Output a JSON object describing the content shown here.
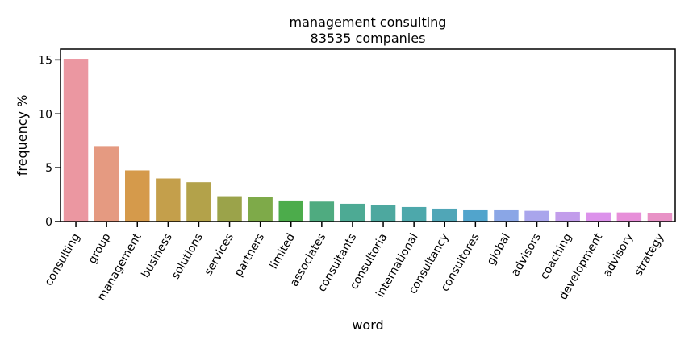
{
  "chart_data": {
    "type": "bar",
    "title": "management consulting",
    "subtitle": "83535 companies",
    "xlabel": "word",
    "ylabel": "frequency %",
    "ylim": [
      0,
      16.0
    ],
    "yticks": [
      0,
      5,
      10,
      15
    ],
    "grid": false,
    "categories": [
      "consulting",
      "group",
      "management",
      "business",
      "solutions",
      "services",
      "partners",
      "limited",
      "associates",
      "consultants",
      "consultoria",
      "international",
      "consultancy",
      "consultores",
      "global",
      "advisors",
      "coaching",
      "development",
      "advisory",
      "strategy"
    ],
    "values": [
      15.1,
      7.0,
      4.75,
      4.0,
      3.65,
      2.35,
      2.25,
      1.95,
      1.85,
      1.65,
      1.5,
      1.35,
      1.2,
      1.05,
      1.05,
      1.0,
      0.9,
      0.85,
      0.85,
      0.75
    ],
    "colors": [
      "#eb97a1",
      "#e59a81",
      "#d59a4b",
      "#c49f4b",
      "#b3a24a",
      "#9ba34a",
      "#7eaa49",
      "#4cac4b",
      "#4fab80",
      "#4daa94",
      "#4da89f",
      "#4da8ab",
      "#50a6b7",
      "#51a4cc",
      "#8aa6e6",
      "#a9a5ec",
      "#c29deb",
      "#dc92eb",
      "#e78fd9",
      "#e892c6"
    ]
  }
}
